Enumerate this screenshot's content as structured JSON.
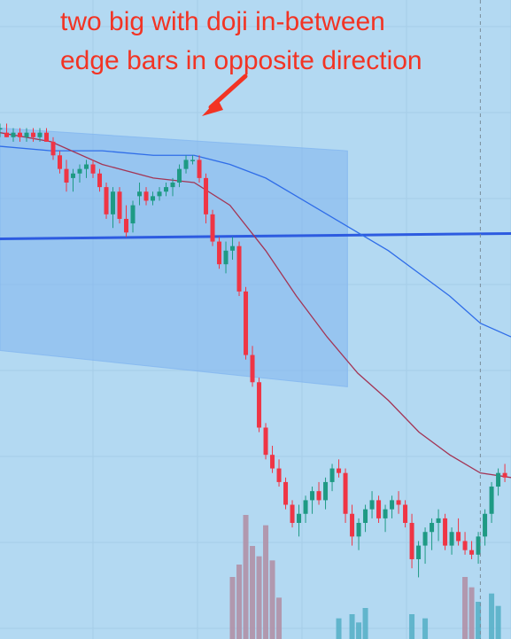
{
  "chart_data": {
    "type": "candlestick",
    "annotation": {
      "lines": [
        "two big with doji in-between",
        "edge bars in opposite direction"
      ],
      "color": "#f23424"
    },
    "colors": {
      "background": "#b3d9f2",
      "gridline": "#a6cde8",
      "shaded_channel": "#7fb4ef",
      "up_candle": "#1e9a84",
      "down_candle": "#ef3545",
      "horizontal_line": "#2d5be0",
      "ma_fast": "#a33555",
      "ma_slow": "#2f6de8",
      "volume_down": "#b08ca2",
      "volume_up": "#52aec6",
      "crosshair": "#7a8c9a"
    },
    "y_range": [
      0,
      100
    ],
    "x_range": [
      0,
      100
    ],
    "horizontal_level": 63,
    "channel": {
      "top": [
        [
          0,
          87
        ],
        [
          68,
          82
        ]
      ],
      "bottom": [
        [
          0,
          38
        ],
        [
          68,
          30
        ]
      ]
    },
    "crosshair_x": 94,
    "candles": [
      [
        0,
        87,
        88,
        85,
        87
      ],
      [
        1.3,
        86,
        88,
        85,
        85
      ],
      [
        2.6,
        85,
        87,
        84,
        86
      ],
      [
        3.9,
        86,
        87,
        84,
        85
      ],
      [
        5.2,
        85,
        87,
        84,
        86
      ],
      [
        6.5,
        86,
        87,
        84,
        85
      ],
      [
        7.8,
        85,
        87,
        84,
        86
      ],
      [
        9.1,
        86,
        87,
        84,
        84
      ],
      [
        10.4,
        84,
        85,
        80,
        81
      ],
      [
        11.7,
        81,
        82,
        77,
        78
      ],
      [
        13,
        78,
        80,
        73,
        75
      ],
      [
        14.3,
        76,
        78,
        73,
        77
      ],
      [
        15.6,
        77,
        79,
        75,
        78
      ],
      [
        16.9,
        78,
        80,
        76,
        79
      ],
      [
        18.2,
        79,
        80,
        76,
        77
      ],
      [
        19.5,
        77,
        78,
        73,
        74
      ],
      [
        20.8,
        74,
        75,
        67,
        68
      ],
      [
        22.1,
        68,
        74,
        65,
        73
      ],
      [
        23.4,
        73,
        74,
        66,
        67
      ],
      [
        24.7,
        67,
        70,
        63,
        64
      ],
      [
        26,
        66,
        71,
        64,
        70
      ],
      [
        27.3,
        72,
        75,
        70,
        73
      ],
      [
        28.6,
        73,
        74,
        70,
        71
      ],
      [
        29.9,
        71,
        73,
        70,
        72
      ],
      [
        31.2,
        72,
        74,
        71,
        73
      ],
      [
        32.5,
        73,
        75,
        72,
        74
      ],
      [
        33.8,
        74,
        76,
        72,
        75
      ],
      [
        35.1,
        75,
        79,
        74,
        78
      ],
      [
        36.4,
        78,
        81,
        77,
        80
      ],
      [
        37.7,
        80,
        81,
        79,
        80
      ],
      [
        39,
        80,
        81,
        75,
        76
      ],
      [
        40.3,
        76,
        77,
        66,
        68
      ],
      [
        41.6,
        68,
        69,
        61,
        62
      ],
      [
        42.9,
        62,
        63,
        56,
        57
      ],
      [
        44.2,
        57,
        62,
        55,
        60
      ],
      [
        45.5,
        60,
        63,
        58,
        61
      ],
      [
        46.8,
        61,
        62,
        50,
        51
      ],
      [
        48.1,
        51,
        52,
        36,
        37
      ],
      [
        49.4,
        37,
        39,
        30,
        31
      ],
      [
        50.7,
        31,
        32,
        20,
        21
      ],
      [
        52,
        21,
        22,
        14,
        15
      ],
      [
        53.3,
        15,
        17,
        11,
        12
      ],
      [
        54.6,
        12,
        14,
        8,
        9
      ],
      [
        55.9,
        9,
        10,
        3,
        4
      ],
      [
        57.2,
        4,
        5,
        -1,
        0
      ],
      [
        58.5,
        0,
        4,
        -3,
        2
      ],
      [
        59.8,
        2,
        6,
        0,
        5
      ],
      [
        61.1,
        5,
        8,
        2,
        7
      ],
      [
        62.4,
        7,
        9,
        4,
        5
      ],
      [
        63.7,
        5,
        10,
        3,
        9
      ],
      [
        65,
        9,
        13,
        7,
        12
      ],
      [
        66.3,
        12,
        14,
        10,
        11
      ],
      [
        67.6,
        11,
        12,
        0,
        2
      ],
      [
        68.9,
        2,
        4,
        -5,
        -3
      ],
      [
        70.2,
        -3,
        1,
        -6,
        0
      ],
      [
        71.5,
        0,
        4,
        -2,
        3
      ],
      [
        72.8,
        3,
        7,
        1,
        5
      ],
      [
        74.1,
        5,
        6,
        0,
        1
      ],
      [
        75.4,
        1,
        4,
        -2,
        3
      ],
      [
        76.7,
        3,
        6,
        1,
        5
      ],
      [
        78,
        5,
        7,
        2,
        4
      ],
      [
        79.3,
        4,
        5,
        -1,
        0
      ],
      [
        80.6,
        0,
        2,
        -10,
        -8
      ],
      [
        81.9,
        -8,
        -4,
        -12,
        -5
      ],
      [
        83.2,
        -5,
        -1,
        -9,
        -2
      ],
      [
        84.5,
        -2,
        1,
        -6,
        0
      ],
      [
        85.8,
        0,
        3,
        -4,
        1
      ],
      [
        87.1,
        1,
        2,
        -6,
        -5
      ],
      [
        88.4,
        -5,
        -1,
        -7,
        -2
      ],
      [
        89.7,
        -2,
        1,
        -5,
        -4
      ],
      [
        91,
        -4,
        -2,
        -7,
        -6
      ],
      [
        92.3,
        -6,
        -4,
        -8,
        -7
      ],
      [
        93.6,
        -7,
        -2,
        -9,
        -3
      ],
      [
        94.9,
        -3,
        3,
        -5,
        2
      ],
      [
        96.2,
        2,
        9,
        0,
        8
      ],
      [
        97.5,
        8,
        12,
        6,
        11
      ],
      [
        98.8,
        11,
        13,
        9,
        10
      ]
    ],
    "volume": [
      [
        45.5,
        30,
        "down"
      ],
      [
        46.8,
        36,
        "down"
      ],
      [
        48.1,
        60,
        "down"
      ],
      [
        49.4,
        45,
        "down"
      ],
      [
        50.7,
        40,
        "down"
      ],
      [
        52,
        55,
        "down"
      ],
      [
        53.3,
        38,
        "down"
      ],
      [
        54.6,
        20,
        "down"
      ],
      [
        66.3,
        10,
        "up"
      ],
      [
        68.9,
        12,
        "up"
      ],
      [
        70.2,
        8,
        "up"
      ],
      [
        71.5,
        15,
        "up"
      ],
      [
        80.6,
        12,
        "up"
      ],
      [
        83.2,
        10,
        "up"
      ],
      [
        91,
        30,
        "down"
      ],
      [
        92.3,
        25,
        "down"
      ],
      [
        93.6,
        18,
        "up"
      ],
      [
        96.2,
        22,
        "up"
      ],
      [
        97.5,
        16,
        "up"
      ]
    ],
    "ma_fast": [
      [
        0,
        86
      ],
      [
        10,
        84
      ],
      [
        20,
        79
      ],
      [
        30,
        76
      ],
      [
        38,
        75
      ],
      [
        45,
        70
      ],
      [
        52,
        60
      ],
      [
        58,
        50
      ],
      [
        64,
        41
      ],
      [
        70,
        33
      ],
      [
        76,
        27
      ],
      [
        82,
        20
      ],
      [
        88,
        15
      ],
      [
        94,
        11
      ],
      [
        100,
        10
      ]
    ],
    "ma_slow": [
      [
        0,
        83
      ],
      [
        10,
        82
      ],
      [
        20,
        82
      ],
      [
        30,
        81
      ],
      [
        38,
        81
      ],
      [
        45,
        79
      ],
      [
        52,
        76
      ],
      [
        58,
        72
      ],
      [
        64,
        68
      ],
      [
        70,
        64
      ],
      [
        76,
        60
      ],
      [
        82,
        55
      ],
      [
        88,
        50
      ],
      [
        94,
        44
      ],
      [
        100,
        41
      ]
    ]
  }
}
